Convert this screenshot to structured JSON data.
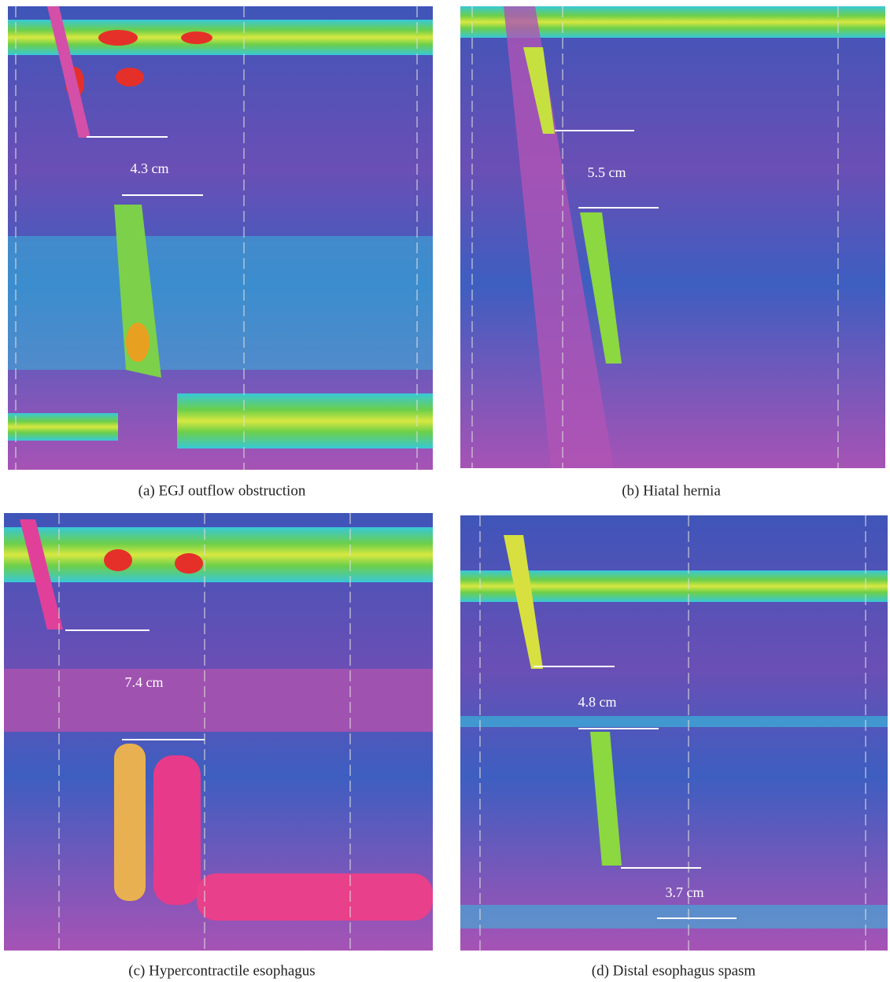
{
  "panels": [
    {
      "caption": "(a) EGJ outflow obstruction",
      "measurements": [
        "4.3 cm"
      ]
    },
    {
      "caption": "(b) Hiatal hernia",
      "measurements": [
        "5.5 cm"
      ]
    },
    {
      "caption": "(c) Hypercontractile esophagus",
      "measurements": [
        "7.4 cm"
      ]
    },
    {
      "caption": "(d) Distal esophagus spasm",
      "measurements": [
        "4.8 cm",
        "3.7 cm"
      ]
    }
  ]
}
